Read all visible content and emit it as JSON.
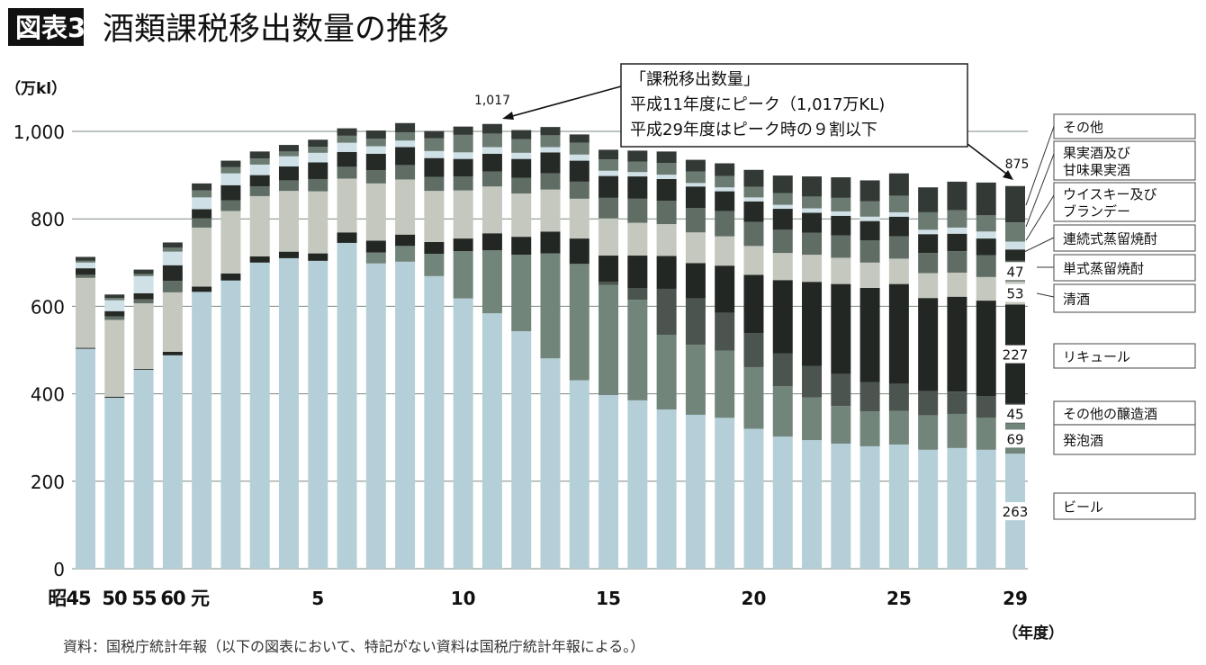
{
  "header": {
    "badge": "図表3",
    "title": "酒類課税移出数量の推移"
  },
  "source_note": "資料：国税庁統計年報（以下の図表において、特記がない資料は国税庁統計年報による。）",
  "callout": {
    "lines": [
      "「課税移出数量」",
      "平成11年度にピーク（1,017万KL)",
      "平成29年度はピーク時の９割以下"
    ]
  },
  "chart_data": {
    "type": "bar",
    "stacked": true,
    "ylabel": "（万kl）",
    "xlabel": "（年度）",
    "ylim": [
      0,
      1000
    ],
    "yticks": [
      "0",
      "200",
      "400",
      "600",
      "800",
      "1,000"
    ],
    "grid": true,
    "legend_placement": "right",
    "categories": [
      "昭45",
      "昭50",
      "昭55",
      "昭60",
      "元",
      "2",
      "3",
      "4",
      "5",
      "6",
      "7",
      "8",
      "9",
      "10",
      "11",
      "12",
      "13",
      "14",
      "15",
      "16",
      "17",
      "18",
      "19",
      "20",
      "21",
      "22",
      "23",
      "24",
      "25",
      "26",
      "27",
      "28",
      "29"
    ],
    "tick_labels": [
      {
        "category": "昭45",
        "label": "昭45"
      },
      {
        "category": "昭50",
        "label": "50"
      },
      {
        "category": "昭55",
        "label": "55"
      },
      {
        "category": "昭60",
        "label": "60"
      },
      {
        "category": "元",
        "label": "元"
      },
      {
        "category": "5",
        "label": "5"
      },
      {
        "category": "10",
        "label": "10"
      },
      {
        "category": "15",
        "label": "15"
      },
      {
        "category": "20",
        "label": "20"
      },
      {
        "category": "25",
        "label": "25"
      },
      {
        "category": "29",
        "label": "29"
      }
    ],
    "series": [
      {
        "name": "ビール",
        "color": "#b5cfd8",
        "values": [
          503,
          391,
          455,
          488,
          633,
          659,
          700,
          710,
          704,
          745,
          698,
          702,
          669,
          618,
          584,
          543,
          481,
          431,
          397,
          385,
          364,
          352,
          345,
          320,
          302,
          294,
          286,
          280,
          284,
          272,
          276,
          272,
          263
        ]
      },
      {
        "name": "発泡酒",
        "color": "#72857a",
        "values": [
          0,
          0,
          0,
          0,
          0,
          0,
          0,
          0,
          0,
          0,
          25,
          36,
          51,
          108,
          144,
          175,
          240,
          266,
          252,
          230,
          171,
          160,
          154,
          141,
          115,
          98,
          86,
          80,
          77,
          79,
          78,
          73,
          69
        ]
      },
      {
        "name": "その他の醸造酒",
        "color": "#4b544e",
        "values": [
          0,
          0,
          0,
          0,
          0,
          0,
          0,
          0,
          0,
          0,
          0,
          0,
          0,
          0,
          0,
          0,
          0,
          0,
          7,
          27,
          105,
          106,
          86,
          78,
          75,
          72,
          73,
          67,
          62,
          55,
          51,
          50,
          45
        ]
      },
      {
        "name": "リキュール",
        "color": "#232724",
        "values": [
          2,
          2,
          2,
          8,
          12,
          16,
          14,
          15,
          17,
          24,
          27,
          26,
          27,
          29,
          39,
          41,
          50,
          58,
          60,
          74,
          75,
          81,
          108,
          133,
          168,
          192,
          206,
          215,
          228,
          213,
          217,
          218,
          227
        ]
      },
      {
        "name": "清酒",
        "color": "#c4c8be",
        "values": [
          160,
          176,
          150,
          136,
          135,
          143,
          138,
          139,
          142,
          123,
          131,
          126,
          117,
          110,
          107,
          99,
          96,
          91,
          85,
          75,
          73,
          70,
          67,
          66,
          62,
          62,
          60,
          58,
          58,
          57,
          55,
          54,
          53
        ]
      },
      {
        "name": "単式蒸留焼酎",
        "color": "#5f6d64",
        "values": [
          7,
          8,
          9,
          26,
          21,
          24,
          22,
          24,
          28,
          27,
          30,
          33,
          32,
          32,
          34,
          36,
          37,
          39,
          47,
          55,
          53,
          56,
          58,
          55,
          53,
          50,
          51,
          51,
          51,
          46,
          49,
          50,
          47
        ]
      },
      {
        "name": "連続式蒸留焼酎",
        "color": "#262a27",
        "values": [
          15,
          12,
          14,
          36,
          21,
          35,
          26,
          32,
          38,
          34,
          38,
          41,
          43,
          40,
          41,
          43,
          48,
          48,
          50,
          51,
          50,
          49,
          45,
          47,
          48,
          46,
          45,
          44,
          45,
          43,
          40,
          38,
          26
        ]
      },
      {
        "name": "ウイスキー及びブランデー",
        "color": "#cfe1e7",
        "values": [
          13,
          25,
          39,
          31,
          27,
          27,
          24,
          23,
          22,
          21,
          17,
          15,
          16,
          15,
          15,
          14,
          12,
          14,
          12,
          10,
          10,
          8,
          9,
          9,
          9,
          10,
          10,
          10,
          10,
          10,
          14,
          16,
          18
        ]
      },
      {
        "name": "果実酒及び甘味果実酒",
        "color": "#6c7b72",
        "values": [
          4,
          5,
          5,
          9,
          16,
          14,
          14,
          11,
          14,
          16,
          17,
          19,
          29,
          40,
          31,
          31,
          27,
          27,
          26,
          24,
          27,
          26,
          26,
          24,
          27,
          27,
          31,
          35,
          38,
          40,
          40,
          37,
          44
        ]
      },
      {
        "name": "その他",
        "color": "#333a36",
        "values": [
          9,
          8,
          10,
          12,
          16,
          15,
          16,
          15,
          16,
          17,
          19,
          21,
          17,
          19,
          22,
          21,
          19,
          19,
          22,
          25,
          26,
          27,
          29,
          39,
          40,
          46,
          47,
          48,
          51,
          57,
          65,
          75,
          83
        ]
      }
    ],
    "annotations": {
      "peak_label": "1,017",
      "last_total": "875",
      "last_values": [
        {
          "series": "単式蒸留焼酎",
          "label": "47"
        },
        {
          "series": "清酒",
          "label": "53"
        },
        {
          "series": "リキュール",
          "label": "227"
        },
        {
          "series": "その他の醸造酒",
          "label": "45"
        },
        {
          "series": "発泡酒",
          "label": "69"
        },
        {
          "series": "ビール",
          "label": "263"
        }
      ]
    },
    "legend": [
      {
        "label": "その他"
      },
      {
        "label": "果実酒及び",
        "label2": "甘味果実酒"
      },
      {
        "label": "ウイスキー及び",
        "label2": "ブランデー"
      },
      {
        "label": "連続式蒸留焼酎"
      },
      {
        "label": "単式蒸留焼酎"
      },
      {
        "label": "清酒"
      },
      {
        "label": "リキュール"
      },
      {
        "label": "その他の醸造酒"
      },
      {
        "label": "発泡酒"
      },
      {
        "label": "ビール"
      }
    ]
  }
}
